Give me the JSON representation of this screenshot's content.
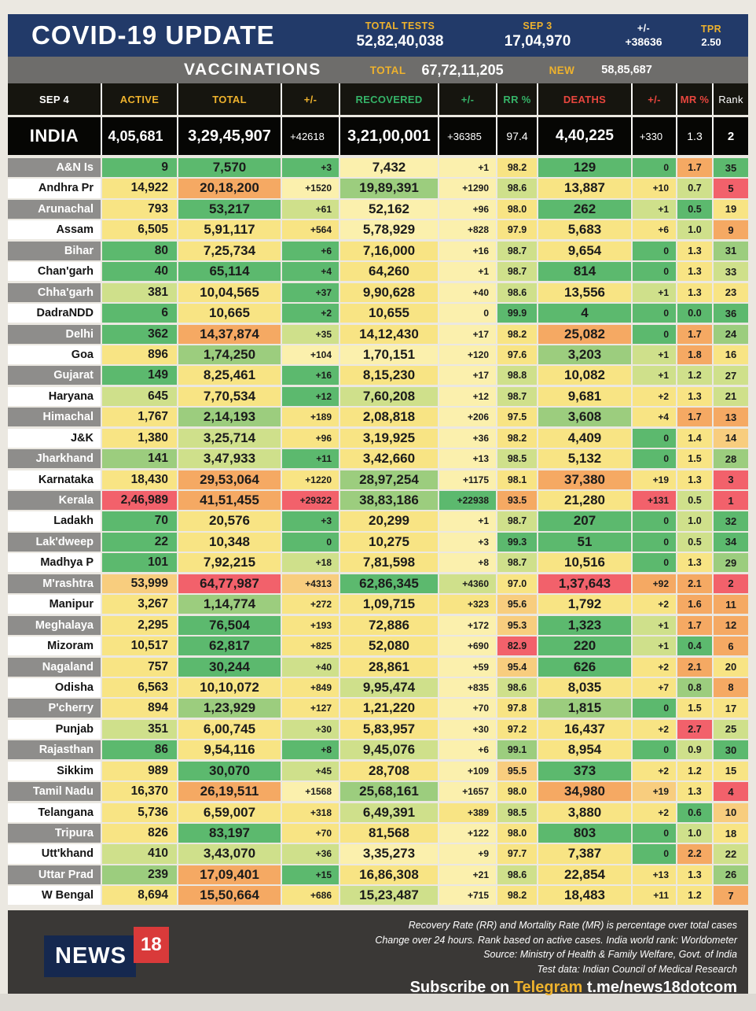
{
  "palette": {
    "g": "#5cb96e",
    "mg": "#9ccd7e",
    "lg": "#cfe08b",
    "y": "#f8e484",
    "py": "#fbf0ad",
    "lo": "#f8cd7e",
    "o": "#f5a963",
    "r": "#f2616b"
  },
  "topbar": {
    "title": "COVID-19 UPDATE",
    "stats": [
      {
        "label": "TOTAL TESTS",
        "value": "52,82,40,038",
        "label_color": "#eeb22d"
      },
      {
        "label": "SEP 3",
        "value": "17,04,970",
        "label_color": "#eeb22d"
      },
      {
        "label": "+/-",
        "value": "+38636",
        "label_color": "#ffffff"
      },
      {
        "label": "TPR",
        "value": "2.50",
        "label_color": "#eeb22d"
      }
    ]
  },
  "vaccinations": {
    "title": "VACCINATIONS",
    "total_label": "TOTAL",
    "total_value": "67,72,11,205",
    "new_label": "NEW",
    "new_value": "58,85,687"
  },
  "chart_data": {
    "type": "table",
    "title": "COVID-19 UPDATE",
    "date_header": "SEP 4",
    "columns": [
      {
        "label": "ACTIVE",
        "color": "#eeb22d"
      },
      {
        "label": "TOTAL",
        "color": "#eeb22d"
      },
      {
        "label": "+/-",
        "color": "#eeb22d"
      },
      {
        "label": "RECOVERED",
        "color": "#35b368"
      },
      {
        "label": "+/-",
        "color": "#35b368"
      },
      {
        "label": "RR %",
        "color": "#35b368"
      },
      {
        "label": "DEATHS",
        "color": "#e8463e"
      },
      {
        "label": "+/-",
        "color": "#e8463e"
      },
      {
        "label": "MR %",
        "color": "#e8463e"
      },
      {
        "label": "Rank",
        "color": "#ffffff"
      }
    ],
    "india": {
      "name": "INDIA",
      "v": [
        "4,05,681",
        "3,29,45,907",
        "+42618",
        "3,21,00,001",
        "+36385",
        "97.4",
        "4,40,225",
        "+330",
        "1.3",
        "2"
      ]
    },
    "rows": [
      {
        "name": "A&N Is",
        "v": [
          "9",
          "7,570",
          "+3",
          "7,432",
          "+1",
          "98.2",
          "129",
          "0",
          "1.7",
          "35"
        ],
        "c": [
          "g",
          "g",
          "g",
          "py",
          "py",
          "y",
          "g",
          "g",
          "o",
          "g"
        ]
      },
      {
        "name": "Andhra Pr",
        "v": [
          "14,922",
          "20,18,200",
          "+1520",
          "19,89,391",
          "+1290",
          "98.6",
          "13,887",
          "+10",
          "0.7",
          "5"
        ],
        "c": [
          "y",
          "o",
          "py",
          "mg",
          "py",
          "lg",
          "y",
          "y",
          "lg",
          "r"
        ]
      },
      {
        "name": "Arunachal",
        "v": [
          "793",
          "53,217",
          "+61",
          "52,162",
          "+96",
          "98.0",
          "262",
          "+1",
          "0.5",
          "19"
        ],
        "c": [
          "y",
          "g",
          "lg",
          "py",
          "py",
          "y",
          "g",
          "lg",
          "g",
          "y"
        ]
      },
      {
        "name": "Assam",
        "v": [
          "6,505",
          "5,91,117",
          "+564",
          "5,78,929",
          "+828",
          "97.9",
          "5,683",
          "+6",
          "1.0",
          "9"
        ],
        "c": [
          "y",
          "y",
          "y",
          "py",
          "py",
          "y",
          "y",
          "y",
          "lg",
          "o"
        ]
      },
      {
        "name": "Bihar",
        "v": [
          "80",
          "7,25,734",
          "+6",
          "7,16,000",
          "+16",
          "98.7",
          "9,654",
          "0",
          "1.3",
          "31"
        ],
        "c": [
          "g",
          "y",
          "g",
          "y",
          "py",
          "lg",
          "y",
          "g",
          "y",
          "mg"
        ]
      },
      {
        "name": "Chan'garh",
        "v": [
          "40",
          "65,114",
          "+4",
          "64,260",
          "+1",
          "98.7",
          "814",
          "0",
          "1.3",
          "33"
        ],
        "c": [
          "g",
          "g",
          "g",
          "y",
          "py",
          "lg",
          "g",
          "g",
          "y",
          "lg"
        ]
      },
      {
        "name": "Chha'garh",
        "v": [
          "381",
          "10,04,565",
          "+37",
          "9,90,628",
          "+40",
          "98.6",
          "13,556",
          "+1",
          "1.3",
          "23"
        ],
        "c": [
          "lg",
          "y",
          "g",
          "y",
          "py",
          "lg",
          "y",
          "lg",
          "y",
          "y"
        ]
      },
      {
        "name": "DadraNDD",
        "v": [
          "6",
          "10,665",
          "+2",
          "10,655",
          "0",
          "99.9",
          "4",
          "0",
          "0.0",
          "36"
        ],
        "c": [
          "g",
          "y",
          "g",
          "y",
          "py",
          "g",
          "g",
          "g",
          "g",
          "g"
        ]
      },
      {
        "name": "Delhi",
        "v": [
          "362",
          "14,37,874",
          "+35",
          "14,12,430",
          "+17",
          "98.2",
          "25,082",
          "0",
          "1.7",
          "24"
        ],
        "c": [
          "g",
          "o",
          "lg",
          "y",
          "py",
          "y",
          "o",
          "g",
          "o",
          "mg"
        ]
      },
      {
        "name": "Goa",
        "v": [
          "896",
          "1,74,250",
          "+104",
          "1,70,151",
          "+120",
          "97.6",
          "3,203",
          "+1",
          "1.8",
          "16"
        ],
        "c": [
          "y",
          "mg",
          "py",
          "py",
          "py",
          "y",
          "mg",
          "lg",
          "o",
          "y"
        ]
      },
      {
        "name": "Gujarat",
        "v": [
          "149",
          "8,25,461",
          "+16",
          "8,15,230",
          "+17",
          "98.8",
          "10,082",
          "+1",
          "1.2",
          "27"
        ],
        "c": [
          "g",
          "y",
          "g",
          "y",
          "py",
          "lg",
          "y",
          "lg",
          "lg",
          "lg"
        ]
      },
      {
        "name": "Haryana",
        "v": [
          "645",
          "7,70,534",
          "+12",
          "7,60,208",
          "+12",
          "98.7",
          "9,681",
          "+2",
          "1.3",
          "21"
        ],
        "c": [
          "lg",
          "y",
          "g",
          "lg",
          "py",
          "lg",
          "y",
          "y",
          "y",
          "lg"
        ]
      },
      {
        "name": "Himachal",
        "v": [
          "1,767",
          "2,14,193",
          "+189",
          "2,08,818",
          "+206",
          "97.5",
          "3,608",
          "+4",
          "1.7",
          "13"
        ],
        "c": [
          "y",
          "mg",
          "y",
          "y",
          "py",
          "y",
          "mg",
          "y",
          "o",
          "o"
        ]
      },
      {
        "name": "J&K",
        "v": [
          "1,380",
          "3,25,714",
          "+96",
          "3,19,925",
          "+36",
          "98.2",
          "4,409",
          "0",
          "1.4",
          "14"
        ],
        "c": [
          "y",
          "lg",
          "y",
          "y",
          "py",
          "y",
          "y",
          "g",
          "y",
          "lo"
        ]
      },
      {
        "name": "Jharkhand",
        "v": [
          "141",
          "3,47,933",
          "+11",
          "3,42,660",
          "+13",
          "98.5",
          "5,132",
          "0",
          "1.5",
          "28"
        ],
        "c": [
          "mg",
          "lg",
          "g",
          "y",
          "py",
          "lg",
          "y",
          "g",
          "y",
          "mg"
        ]
      },
      {
        "name": "Karnataka",
        "v": [
          "18,430",
          "29,53,064",
          "+1220",
          "28,97,254",
          "+1175",
          "98.1",
          "37,380",
          "+19",
          "1.3",
          "3"
        ],
        "c": [
          "y",
          "o",
          "y",
          "mg",
          "py",
          "y",
          "o",
          "y",
          "y",
          "r"
        ]
      },
      {
        "name": "Kerala",
        "v": [
          "2,46,989",
          "41,51,455",
          "+29322",
          "38,83,186",
          "+22938",
          "93.5",
          "21,280",
          "+131",
          "0.5",
          "1"
        ],
        "c": [
          "r",
          "o",
          "r",
          "mg",
          "g",
          "o",
          "y",
          "r",
          "lg",
          "r"
        ]
      },
      {
        "name": "Ladakh",
        "v": [
          "70",
          "20,576",
          "+3",
          "20,299",
          "+1",
          "98.7",
          "207",
          "0",
          "1.0",
          "32"
        ],
        "c": [
          "g",
          "y",
          "g",
          "y",
          "py",
          "lg",
          "g",
          "g",
          "lg",
          "g"
        ]
      },
      {
        "name": "Lak'dweep",
        "v": [
          "22",
          "10,348",
          "0",
          "10,275",
          "+3",
          "99.3",
          "51",
          "0",
          "0.5",
          "34"
        ],
        "c": [
          "g",
          "y",
          "g",
          "y",
          "py",
          "g",
          "g",
          "g",
          "lg",
          "g"
        ]
      },
      {
        "name": "Madhya P",
        "v": [
          "101",
          "7,92,215",
          "+18",
          "7,81,598",
          "+8",
          "98.7",
          "10,516",
          "0",
          "1.3",
          "29"
        ],
        "c": [
          "g",
          "y",
          "lg",
          "y",
          "py",
          "lg",
          "y",
          "g",
          "y",
          "mg"
        ]
      },
      {
        "name": "M'rashtra",
        "v": [
          "53,999",
          "64,77,987",
          "+4313",
          "62,86,345",
          "+4360",
          "97.0",
          "1,37,643",
          "+92",
          "2.1",
          "2"
        ],
        "c": [
          "lo",
          "r",
          "lo",
          "g",
          "lg",
          "y",
          "r",
          "o",
          "o",
          "r"
        ]
      },
      {
        "name": "Manipur",
        "v": [
          "3,267",
          "1,14,774",
          "+272",
          "1,09,715",
          "+323",
          "95.6",
          "1,792",
          "+2",
          "1.6",
          "11"
        ],
        "c": [
          "y",
          "mg",
          "y",
          "y",
          "y",
          "lo",
          "y",
          "y",
          "o",
          "o"
        ]
      },
      {
        "name": "Meghalaya",
        "v": [
          "2,295",
          "76,504",
          "+193",
          "72,886",
          "+172",
          "95.3",
          "1,323",
          "+1",
          "1.7",
          "12"
        ],
        "c": [
          "y",
          "g",
          "y",
          "y",
          "py",
          "lo",
          "g",
          "lg",
          "o",
          "o"
        ]
      },
      {
        "name": "Mizoram",
        "v": [
          "10,517",
          "62,817",
          "+825",
          "52,080",
          "+690",
          "82.9",
          "220",
          "+1",
          "0.4",
          "6"
        ],
        "c": [
          "y",
          "g",
          "y",
          "y",
          "py",
          "r",
          "g",
          "lg",
          "g",
          "o"
        ]
      },
      {
        "name": "Nagaland",
        "v": [
          "757",
          "30,244",
          "+40",
          "28,861",
          "+59",
          "95.4",
          "626",
          "+2",
          "2.1",
          "20"
        ],
        "c": [
          "y",
          "g",
          "lg",
          "y",
          "py",
          "lo",
          "g",
          "y",
          "o",
          "y"
        ]
      },
      {
        "name": "Odisha",
        "v": [
          "6,563",
          "10,10,072",
          "+849",
          "9,95,474",
          "+835",
          "98.6",
          "8,035",
          "+7",
          "0.8",
          "8"
        ],
        "c": [
          "y",
          "y",
          "y",
          "lg",
          "py",
          "lg",
          "y",
          "y",
          "mg",
          "o"
        ]
      },
      {
        "name": "P'cherry",
        "v": [
          "894",
          "1,23,929",
          "+127",
          "1,21,220",
          "+70",
          "97.8",
          "1,815",
          "0",
          "1.5",
          "17"
        ],
        "c": [
          "y",
          "mg",
          "y",
          "y",
          "py",
          "y",
          "mg",
          "g",
          "y",
          "y"
        ]
      },
      {
        "name": "Punjab",
        "v": [
          "351",
          "6,00,745",
          "+30",
          "5,83,957",
          "+30",
          "97.2",
          "16,437",
          "+2",
          "2.7",
          "25"
        ],
        "c": [
          "lg",
          "y",
          "lg",
          "y",
          "py",
          "y",
          "y",
          "y",
          "r",
          "lg"
        ]
      },
      {
        "name": "Rajasthan",
        "v": [
          "86",
          "9,54,116",
          "+8",
          "9,45,076",
          "+6",
          "99.1",
          "8,954",
          "0",
          "0.9",
          "30"
        ],
        "c": [
          "g",
          "y",
          "g",
          "lg",
          "py",
          "mg",
          "y",
          "g",
          "lg",
          "g"
        ]
      },
      {
        "name": "Sikkim",
        "v": [
          "989",
          "30,070",
          "+45",
          "28,708",
          "+109",
          "95.5",
          "373",
          "+2",
          "1.2",
          "15"
        ],
        "c": [
          "y",
          "g",
          "lg",
          "y",
          "py",
          "lo",
          "g",
          "y",
          "y",
          "y"
        ]
      },
      {
        "name": "Tamil Nadu",
        "v": [
          "16,370",
          "26,19,511",
          "+1568",
          "25,68,161",
          "+1657",
          "98.0",
          "34,980",
          "+19",
          "1.3",
          "4"
        ],
        "c": [
          "y",
          "o",
          "py",
          "mg",
          "py",
          "y",
          "o",
          "lo",
          "y",
          "r"
        ]
      },
      {
        "name": "Telangana",
        "v": [
          "5,736",
          "6,59,007",
          "+318",
          "6,49,391",
          "+389",
          "98.5",
          "3,880",
          "+2",
          "0.6",
          "10"
        ],
        "c": [
          "y",
          "y",
          "y",
          "lg",
          "y",
          "lg",
          "y",
          "y",
          "g",
          "lo"
        ]
      },
      {
        "name": "Tripura",
        "v": [
          "826",
          "83,197",
          "+70",
          "81,568",
          "+122",
          "98.0",
          "803",
          "0",
          "1.0",
          "18"
        ],
        "c": [
          "y",
          "g",
          "y",
          "y",
          "py",
          "y",
          "g",
          "g",
          "lg",
          "y"
        ]
      },
      {
        "name": "Utt'khand",
        "v": [
          "410",
          "3,43,070",
          "+36",
          "3,35,273",
          "+9",
          "97.7",
          "7,387",
          "0",
          "2.2",
          "22"
        ],
        "c": [
          "lg",
          "lg",
          "lg",
          "py",
          "py",
          "y",
          "y",
          "g",
          "o",
          "lg"
        ]
      },
      {
        "name": "Uttar Prad",
        "v": [
          "239",
          "17,09,401",
          "+15",
          "16,86,308",
          "+21",
          "98.6",
          "22,854",
          "+13",
          "1.3",
          "26"
        ],
        "c": [
          "mg",
          "o",
          "g",
          "y",
          "py",
          "lg",
          "y",
          "y",
          "y",
          "mg"
        ]
      },
      {
        "name": "W Bengal",
        "v": [
          "8,694",
          "15,50,664",
          "+686",
          "15,23,487",
          "+715",
          "98.2",
          "18,483",
          "+11",
          "1.2",
          "7"
        ],
        "c": [
          "y",
          "o",
          "y",
          "lg",
          "py",
          "y",
          "y",
          "y",
          "y",
          "o"
        ]
      }
    ]
  },
  "footer": {
    "logo_text_1": "NEWS",
    "logo_text_2": "18",
    "notes": [
      "Recovery Rate (RR) and Mortality Rate (MR) is percentage over total cases",
      "Change over 24 hours. Rank based on active cases. India world rank: Worldometer",
      "Source: Ministry of Health & Family Welfare, Govt. of India",
      "Test data: Indian Council of Medical Research"
    ],
    "subscribe_prefix": "Subscribe on ",
    "subscribe_brand": "Telegram",
    "subscribe_handle": " t.me/news18dotcom"
  }
}
